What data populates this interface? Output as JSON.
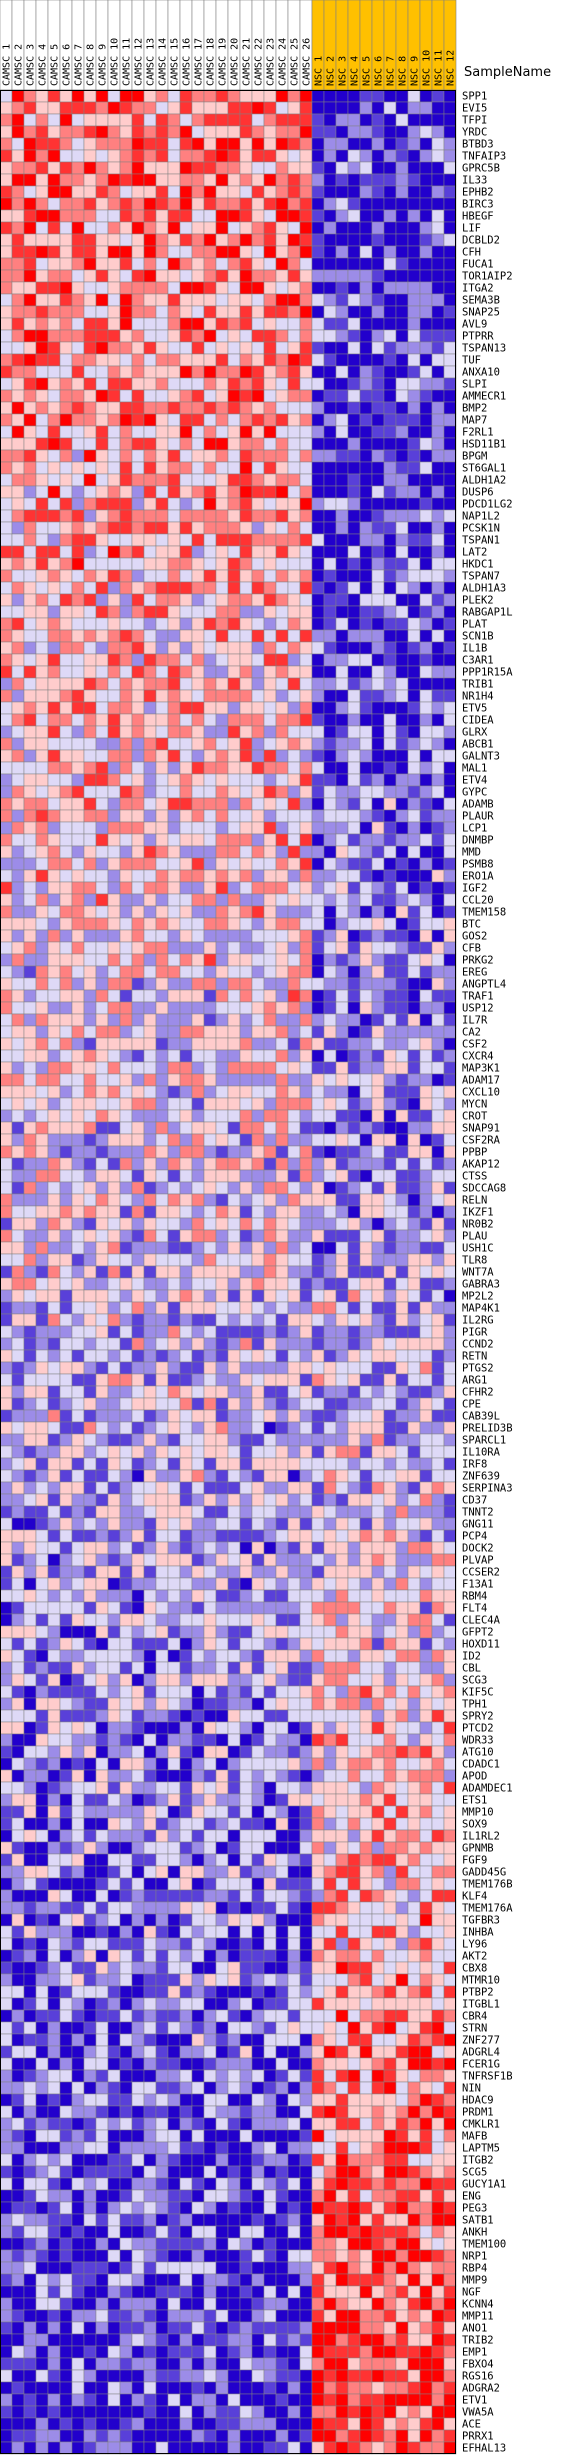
{
  "chart_data": {
    "type": "heatmap",
    "title": "",
    "row_header": "SampleName",
    "colors": {
      "high": "#ff0000",
      "mid": "#ffffff",
      "low": "#2200cc",
      "group_a_header": "#ffffff",
      "group_b_header": "#ffc000",
      "grid": "#808080"
    },
    "columns": [
      "CAMSC 1",
      "CAMSC 2",
      "CAMSC 3",
      "CAMSC 4",
      "CAMSC 5",
      "CAMSC 6",
      "CAMSC 7",
      "CAMSC 8",
      "CAMSC 9",
      "CAMSC 10",
      "CAMSC 11",
      "CAMSC 12",
      "CAMSC 13",
      "CAMSC 14",
      "CAMSC 15",
      "CAMSC 16",
      "CAMSC 17",
      "CAMSC 18",
      "CAMSC 19",
      "CAMSC 20",
      "CAMSC 21",
      "CAMSC 22",
      "CAMSC 23",
      "CAMSC 24",
      "CAMSC 25",
      "CAMSC 26",
      "NSC 1",
      "NSC 2",
      "NSC 3",
      "NSC 4",
      "NSC 5",
      "NSC 6",
      "NSC 7",
      "NSC 8",
      "NSC 9",
      "NSC 10",
      "NSC 11",
      "NSC 12"
    ],
    "group_a_count": 26,
    "rows": [
      "SPP1",
      "EVI5",
      "TFPI",
      "YRDC",
      "BTBD3",
      "TNFAIP3",
      "GPRC5B",
      "IL33",
      "EPHB2",
      "BIRC3",
      "HBEGF",
      "LIF",
      "DCBLD2",
      "CFH",
      "FUCA1",
      "TOR1AIP2",
      "ITGA2",
      "SEMA3B",
      "SNAP25",
      "AVL9",
      "PTPRR",
      "TSPAN13",
      "TUF",
      "ANXA10",
      "SLPI",
      "AMMECR1",
      "BMP2",
      "MAP7",
      "F2RL1",
      "HSD11B1",
      "BPGM",
      "ST6GAL1",
      "ALDH1A2",
      "DUSP6",
      "PDCD1LG2",
      "NAP1L2",
      "PCSK1N",
      "TSPAN1",
      "LAT2",
      "HKDC1",
      "TSPAN7",
      "ALDH1A3",
      "PLEK2",
      "RABGAP1L",
      "PLAT",
      "SCN1B",
      "IL1B",
      "C3AR1",
      "PPP1R15A",
      "TRIB1",
      "NR1H4",
      "ETV5",
      "CIDEA",
      "GLRX",
      "ABCB1",
      "GALNT3",
      "MAL1",
      "ETV4",
      "GYPC",
      "ADAMB",
      "PLAUR",
      "LCP1",
      "DNMBP",
      "MMD",
      "PSMB8",
      "ERO1A",
      "IGF2",
      "CCL20",
      "TMEM158",
      "BTC",
      "GOS2",
      "CFB",
      "PRKG2",
      "EREG",
      "ANGPTL4",
      "TRAF1",
      "USP12",
      "IL7R",
      "CA2",
      "CSF2",
      "CXCR4",
      "MAP3K1",
      "ADAM17",
      "CXCL10",
      "MYCN",
      "CROT",
      "SNAP91",
      "CSF2RA",
      "PPBP",
      "AKAP12",
      "CTSS",
      "SDCCAG8",
      "RELN",
      "IKZF1",
      "NR0B2",
      "PLAU",
      "USH1C",
      "TLR8",
      "WNT7A",
      "GABRA3",
      "MP2L2",
      "MAP4K1",
      "IL2RG",
      "PIGR",
      "CCND2",
      "RETN",
      "PTGS2",
      "ARG1",
      "CFHR2",
      "CPE",
      "CAB39L",
      "PRELID3B",
      "SPARCL1",
      "IL10RA",
      "IRF8",
      "ZNF639",
      "SERPINA3",
      "CD37",
      "TNNT2",
      "GNG11",
      "PCP4",
      "DOCK2",
      "PLVAP",
      "CCSER2",
      "F13A1",
      "RBM4",
      "FLT4",
      "CLEC4A",
      "GFPT2",
      "HOXD11",
      "ID2",
      "CBL",
      "SCG3",
      "KIF5C",
      "TPH1",
      "SPRY2",
      "PTCD2",
      "WDR33",
      "ATG10",
      "CDADC1",
      "APOD",
      "ADAMDEC1",
      "ETS1",
      "MMP10",
      "SOX9",
      "IL1RL2",
      "GPNMB",
      "FGF9",
      "GADD45G",
      "TMEM176B",
      "KLF4",
      "TMEM176A",
      "TGFBR3",
      "INHBA",
      "LY96",
      "AKT2",
      "CBX8",
      "MTMR10",
      "PTBP2",
      "ITGBL1",
      "CBR4",
      "STRN",
      "ZNF277",
      "ADGRL4",
      "FCER1G",
      "TNFRSF1B",
      "NIN",
      "HDAC9",
      "PRDM1",
      "CMKLR1",
      "MAFB",
      "LAPTM5",
      "ITGB2",
      "SCG5",
      "GUCY1A1",
      "ENG",
      "PEG3",
      "SATB1",
      "ANKH",
      "TMEM100",
      "NRP1",
      "RBP4",
      "MMP9",
      "NGF",
      "KCNN4",
      "MMP11",
      "ANO1",
      "TRIB2",
      "EMP1",
      "FBXO4",
      "RGS16",
      "ADGRA2",
      "ETV1",
      "VWA5A",
      "ACE",
      "PRRX1",
      "EFHAL13"
    ],
    "values_encoding": "z-score per row, colored on a blue (low) to white to red (high) scale"
  }
}
